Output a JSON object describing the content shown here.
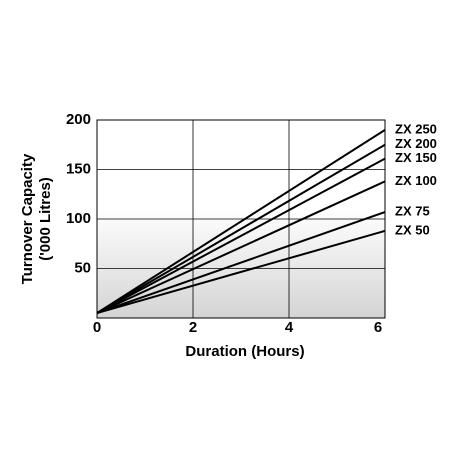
{
  "chart_data": {
    "type": "line",
    "xlabel": "Duration (Hours)",
    "ylabel_lines": [
      "Turnover Capacity",
      "('000 Litres)"
    ],
    "x": [
      0,
      6
    ],
    "series": [
      {
        "name": "ZX 250",
        "color": "#000000",
        "values": [
          5,
          190
        ]
      },
      {
        "name": "ZX 200",
        "color": "#000000",
        "values": [
          5,
          175
        ]
      },
      {
        "name": "ZX 150",
        "color": "#000000",
        "values": [
          5,
          161
        ]
      },
      {
        "name": "ZX 100",
        "color": "#000000",
        "values": [
          5,
          138
        ]
      },
      {
        "name": "ZX 75",
        "color": "#000000",
        "values": [
          5,
          107
        ]
      },
      {
        "name": "ZX 50",
        "color": "#000000",
        "values": [
          5,
          88
        ]
      }
    ],
    "xlim": [
      0,
      6
    ],
    "xticks": [
      0,
      2,
      4,
      6
    ],
    "ylim": [
      0,
      200
    ],
    "yticks": [
      50,
      100,
      150,
      200
    ],
    "grid": true
  }
}
